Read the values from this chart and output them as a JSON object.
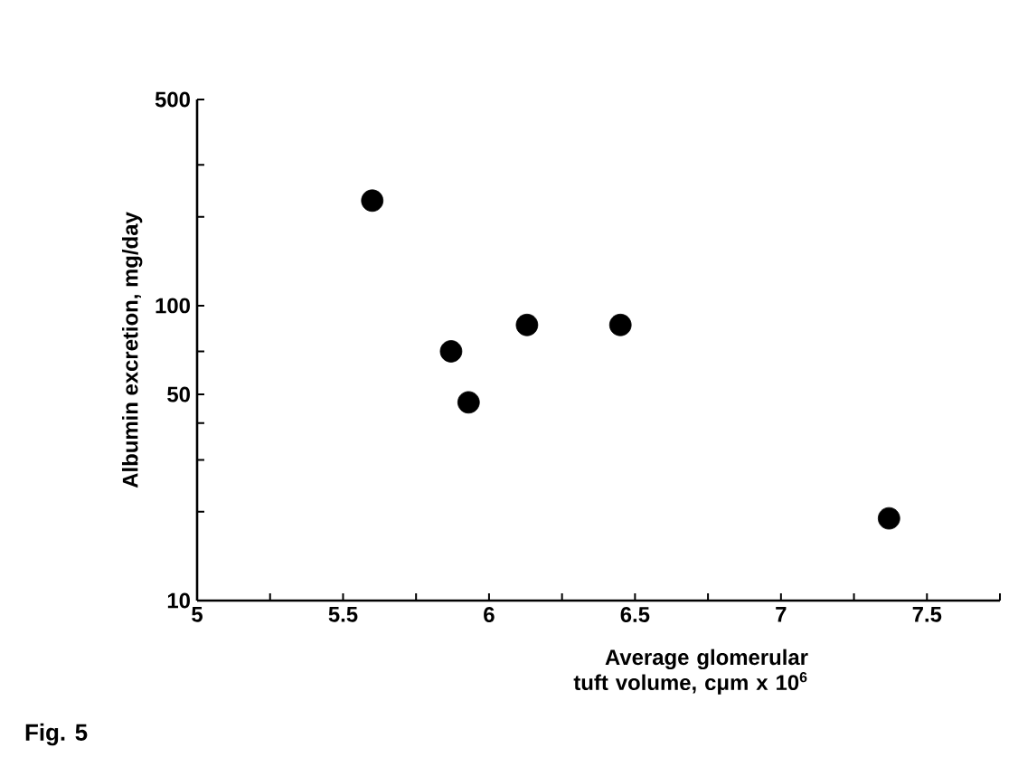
{
  "chart_data": {
    "type": "scatter",
    "xlabel": "Average glomerular tuft volume, cμm x 10$^{6}$",
    "ylabel": "Albumin excretion, mg/day",
    "x": [
      5.6,
      5.87,
      5.93,
      6.13,
      6.45,
      7.37
    ],
    "values": [
      227,
      70,
      47,
      86,
      86,
      19
    ],
    "color": "#000000",
    "marker": "circle",
    "log": "y",
    "xlim": [
      5,
      7.75
    ],
    "xticks": [
      5,
      {
        "value": 5.25,
        "label": null
      },
      5.5,
      {
        "value": 5.75,
        "label": null
      },
      6,
      {
        "value": 6.25,
        "label": null
      },
      6.5,
      {
        "value": 6.75,
        "label": null
      },
      7,
      {
        "value": 7.25,
        "label": null
      },
      7.5,
      {
        "value": 7.75,
        "label": null
      }
    ],
    "ylim": [
      10,
      500
    ],
    "yticks": [
      10,
      {
        "value": 20,
        "label": null
      },
      {
        "value": 30,
        "label": null
      },
      {
        "value": 40,
        "label": null
      },
      50,
      {
        "value": 70,
        "label": null
      },
      100,
      {
        "value": 200,
        "label": null
      },
      {
        "value": 300,
        "label": null
      },
      500
    ],
    "annotations": [
      "Fig. 5"
    ]
  }
}
